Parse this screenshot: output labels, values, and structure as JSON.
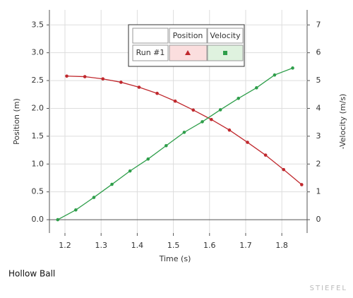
{
  "chart_data": {
    "type": "line",
    "xlabel": "Time (s)",
    "ylabel": "Position (m)",
    "y2label": "-Velocity (m/s)",
    "caption": "Hollow Ball",
    "watermark": "STIEFEL",
    "legend": {
      "run": "Run #1"
    },
    "xlim": [
      1.157,
      1.87
    ],
    "xticks": [
      1.2,
      1.3,
      1.4,
      1.5,
      1.6,
      1.7,
      1.8
    ],
    "ylim": [
      -0.24,
      3.77
    ],
    "yticks": [
      {
        "value": 0,
        "label": "0.0"
      },
      0.5,
      {
        "value": 1,
        "label": "1.0"
      },
      1.5,
      {
        "value": 2,
        "label": "2.0"
      },
      2.5,
      {
        "value": 3,
        "label": "3.0"
      },
      3.5
    ],
    "y2lim": [
      -0.48,
      7.54
    ],
    "y2ticks": [
      0,
      1,
      2,
      3,
      4,
      5,
      6,
      7
    ],
    "grid": true,
    "series": [
      {
        "name": "Position",
        "color": "#c0282d",
        "axis": "y",
        "x": [
          1.205,
          1.255,
          1.305,
          1.355,
          1.405,
          1.455,
          1.505,
          1.555,
          1.605,
          1.655,
          1.705,
          1.755,
          1.805,
          1.855
        ],
        "values": [
          2.58,
          2.57,
          2.53,
          2.47,
          2.38,
          2.27,
          2.13,
          1.97,
          1.8,
          1.61,
          1.39,
          1.16,
          0.9,
          0.63
        ]
      },
      {
        "name": "Velocity",
        "color": "#2e9e4a",
        "axis": "y2",
        "x": [
          1.18,
          1.23,
          1.28,
          1.33,
          1.38,
          1.43,
          1.48,
          1.53,
          1.58,
          1.63,
          1.68,
          1.73,
          1.78,
          1.83
        ],
        "values": [
          0,
          0.35,
          0.8,
          1.27,
          1.75,
          2.18,
          2.66,
          3.14,
          3.52,
          3.95,
          4.36,
          4.74,
          5.2,
          5.45
        ]
      }
    ]
  }
}
